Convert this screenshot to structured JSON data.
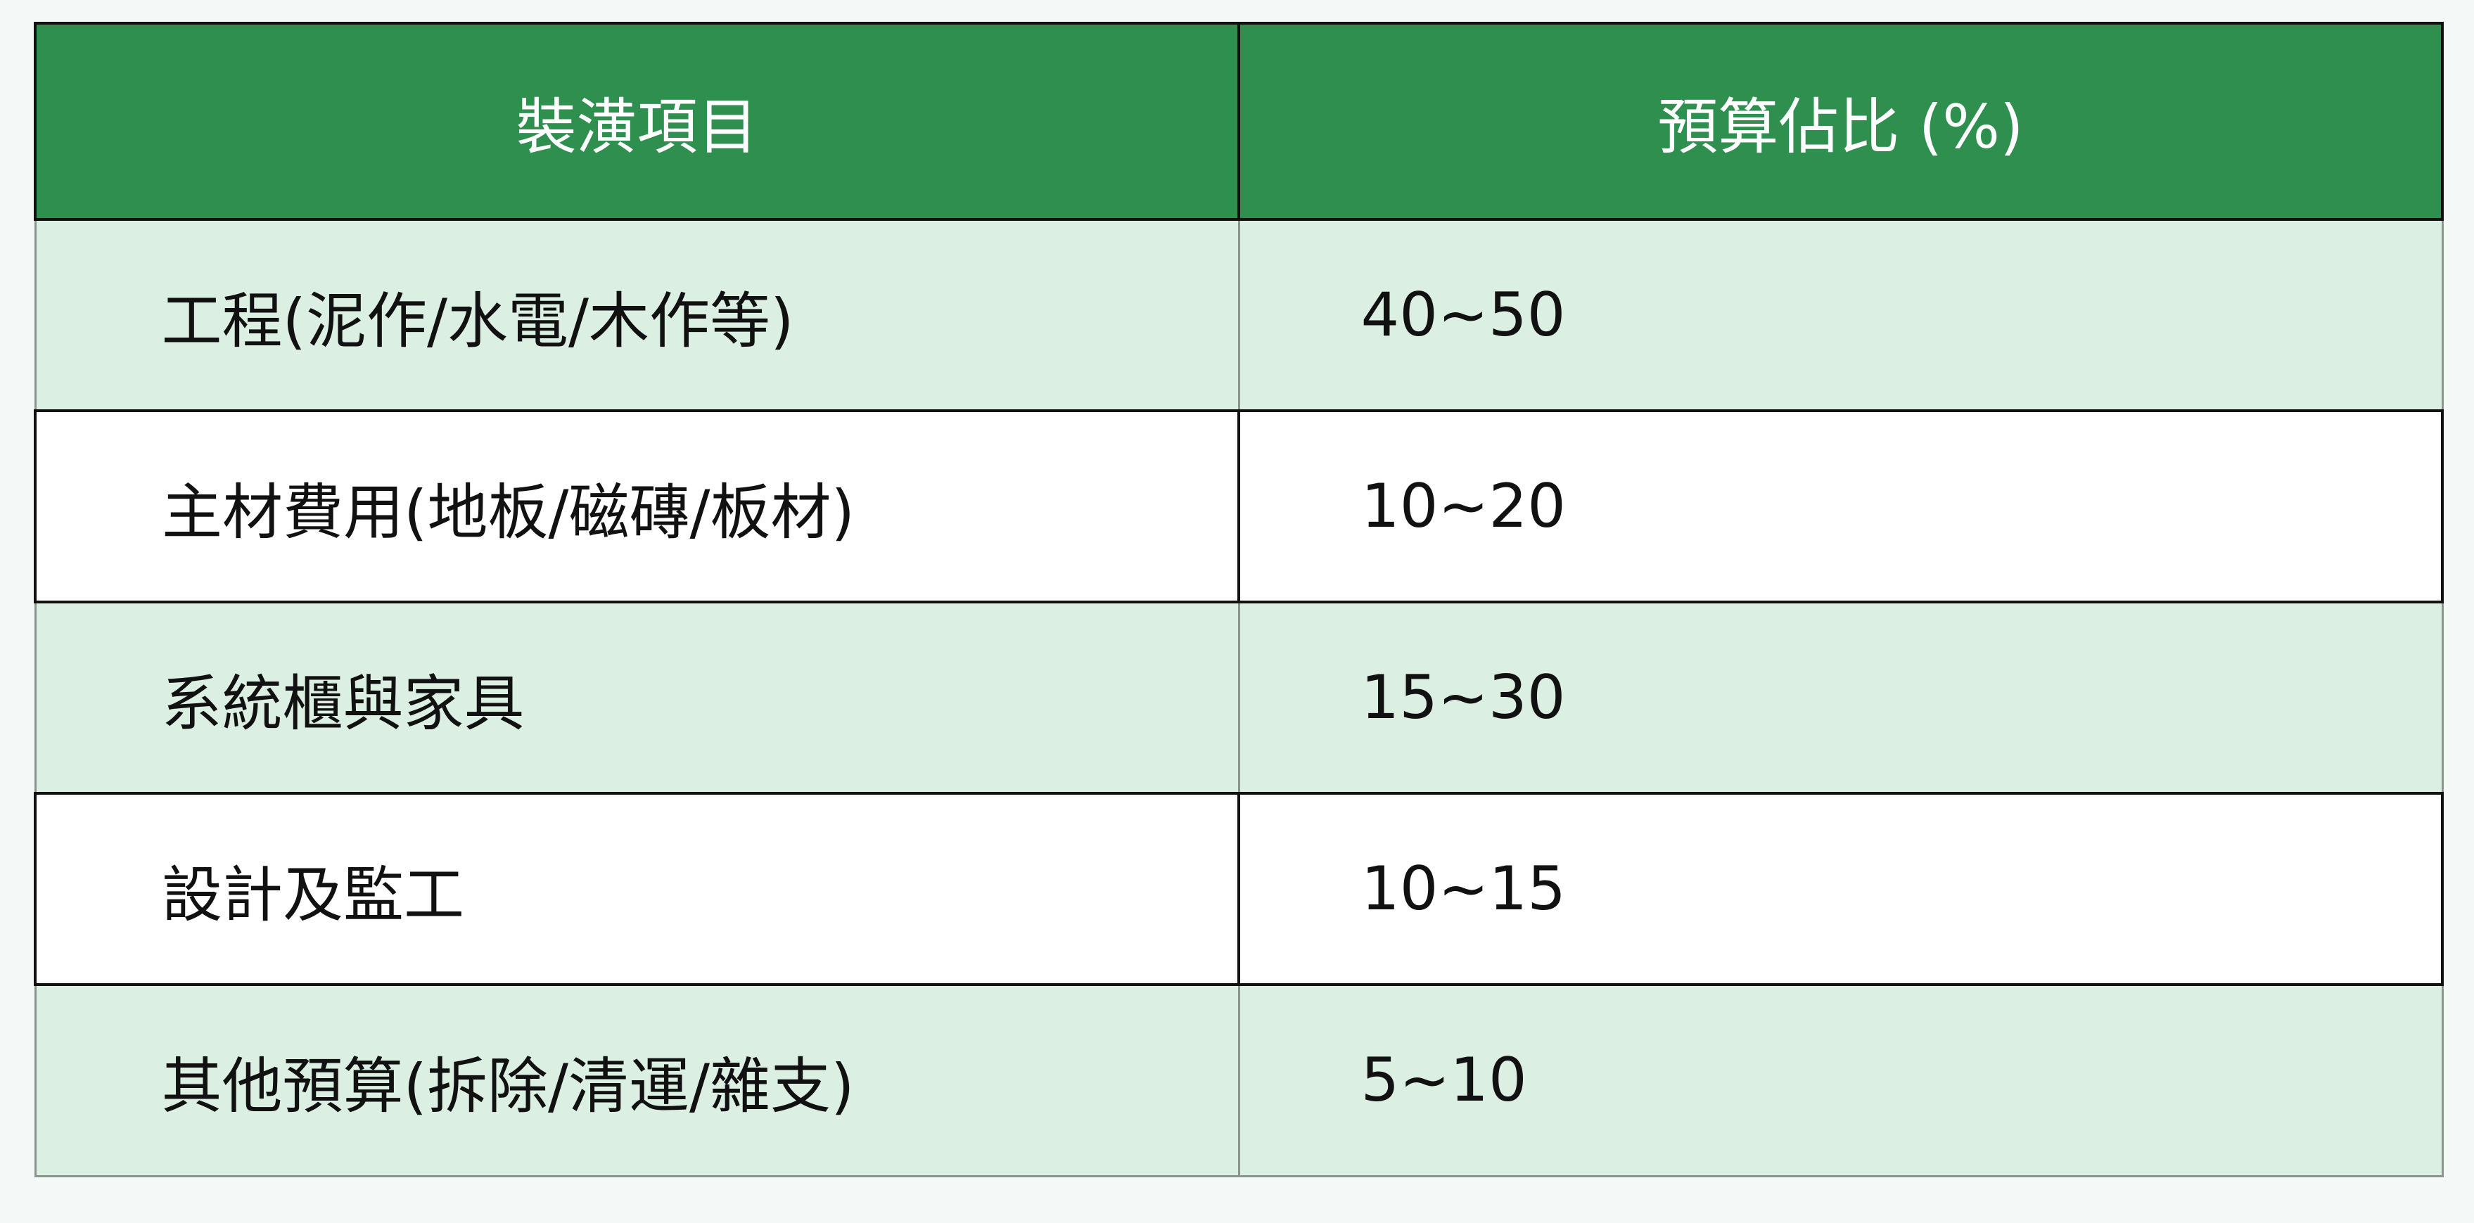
{
  "table": {
    "headers": [
      "裝潢項目",
      "預算佔比 (%)"
    ],
    "rows": [
      {
        "item": "工程(泥作/水電/木作等)",
        "share": "40~50"
      },
      {
        "item": "主材費用(地板/磁磚/板材)",
        "share": "10~20"
      },
      {
        "item": "系統櫃與家具",
        "share": "15~30"
      },
      {
        "item": "設計及監工",
        "share": "10~15"
      },
      {
        "item": "其他預算(拆除/清運/雜支)",
        "share": "5~10"
      }
    ],
    "colors": {
      "header_bg": "#2e8f4f",
      "header_text": "#ffffff",
      "stripe_bg": "#dbefe3",
      "row_bg": "#ffffff"
    }
  }
}
